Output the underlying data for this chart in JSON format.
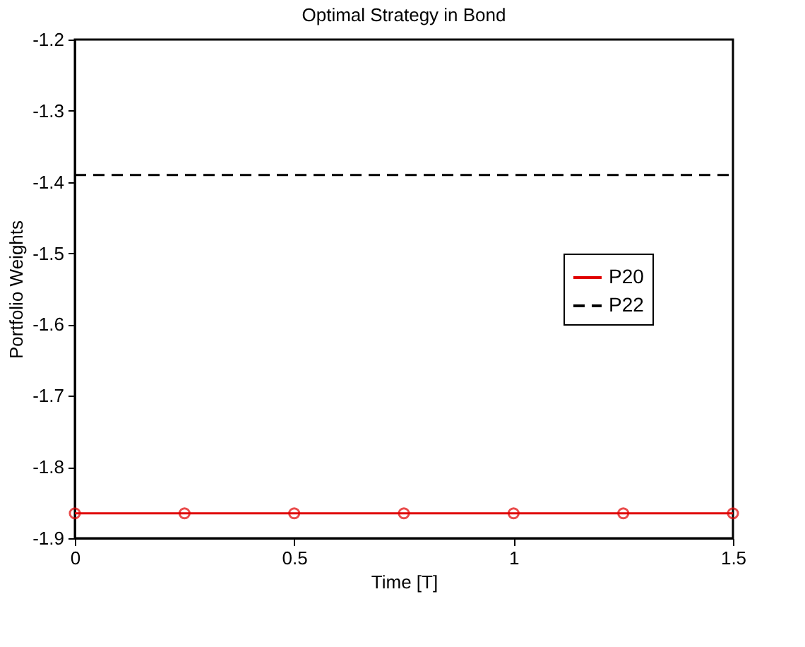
{
  "chart_data": {
    "type": "line",
    "title": "Optimal Strategy in Bond",
    "xlabel": "Time [T]",
    "ylabel": "Portfolio Weights",
    "xlim": [
      0,
      1.5
    ],
    "xticks": [
      0,
      0.5,
      1,
      1.5
    ],
    "ylim": [
      -1.9,
      -1.2
    ],
    "yticks": [
      -1.9,
      -1.8,
      -1.7,
      -1.6,
      -1.5,
      -1.4,
      -1.3,
      -1.2
    ],
    "grid": false,
    "legend": "right",
    "series": [
      {
        "name": "P20",
        "color": "#e00000",
        "marker": "circle",
        "line_style": "solid",
        "x": [
          0,
          0.25,
          0.5,
          0.75,
          1,
          1.25,
          1.5
        ],
        "values": [
          -1.865,
          -1.865,
          -1.865,
          -1.865,
          -1.865,
          -1.865,
          -1.865
        ]
      },
      {
        "name": "P22",
        "color": "#000000",
        "marker": "none",
        "line_style": "dashed",
        "x": [
          0,
          1.5
        ],
        "values": [
          -1.39,
          -1.39
        ]
      }
    ]
  }
}
